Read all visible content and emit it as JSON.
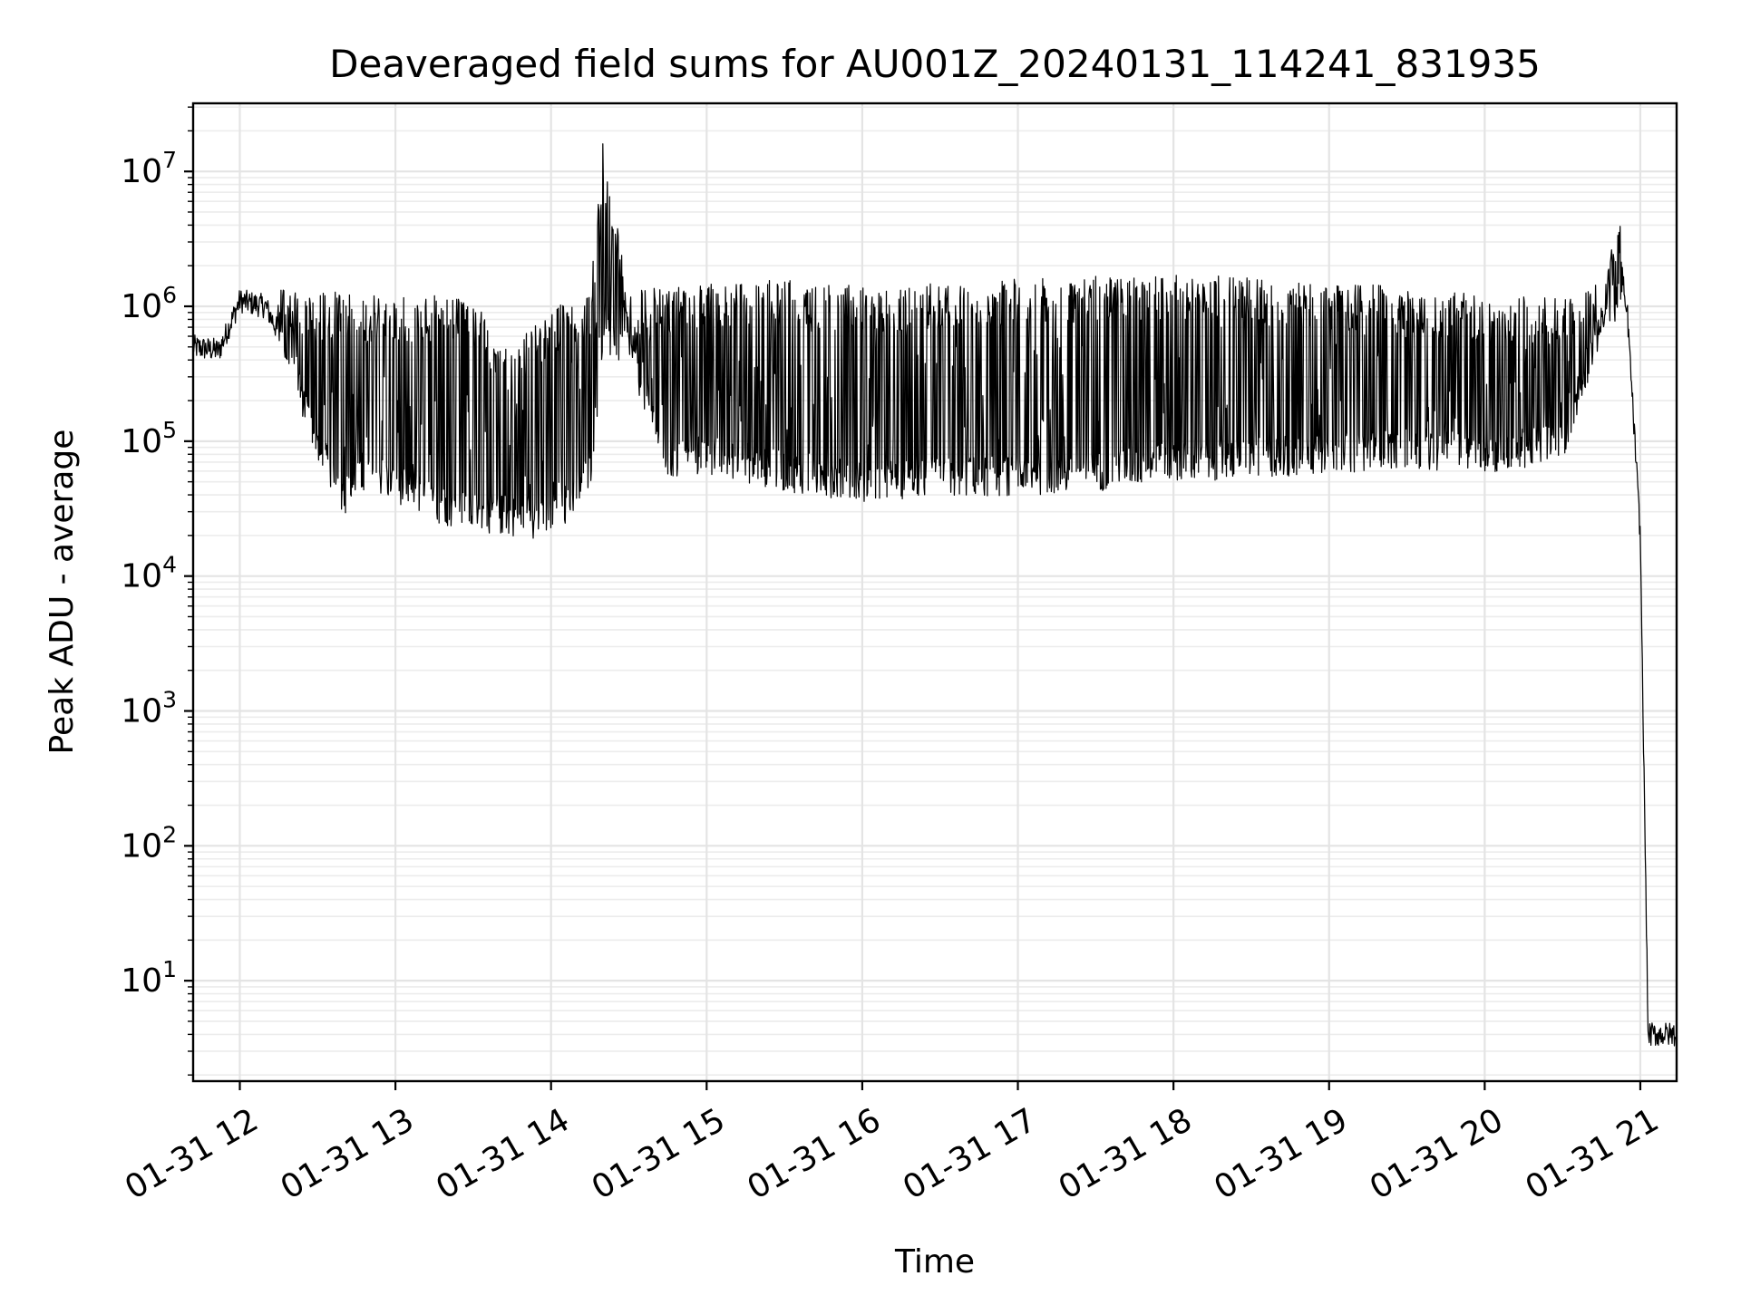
{
  "chart_data": {
    "type": "line",
    "title": "Deaveraged field sums for AU001Z_20240131_114241_831935",
    "xlabel": "Time",
    "ylabel": "Peak ADU - average",
    "yscale": "log",
    "ylim": [
      1.8,
      32000000
    ],
    "xlim": [
      "2024-01-31 11:42",
      "2024-01-31 21:14"
    ],
    "grid": true,
    "x_tick_labels": [
      "01-31 12",
      "01-31 13",
      "01-31 14",
      "01-31 15",
      "01-31 16",
      "01-31 17",
      "01-31 18",
      "01-31 19",
      "01-31 20",
      "01-31 21"
    ],
    "x_ticks": [
      "2024-01-31 12:00",
      "2024-01-31 13:00",
      "2024-01-31 14:00",
      "2024-01-31 15:00",
      "2024-01-31 16:00",
      "2024-01-31 17:00",
      "2024-01-31 18:00",
      "2024-01-31 19:00",
      "2024-01-31 20:00",
      "2024-01-31 21:00"
    ],
    "y_ticks": [
      {
        "base": "10",
        "exp": "1",
        "value": 10
      },
      {
        "base": "10",
        "exp": "2",
        "value": 100
      },
      {
        "base": "10",
        "exp": "3",
        "value": 1000
      },
      {
        "base": "10",
        "exp": "4",
        "value": 10000
      },
      {
        "base": "10",
        "exp": "5",
        "value": 100000
      },
      {
        "base": "10",
        "exp": "6",
        "value": 1000000
      },
      {
        "base": "10",
        "exp": "7",
        "value": 10000000
      }
    ],
    "series": [
      {
        "color": "#000000",
        "x": [
          "2024-01-31 11:42",
          "2024-01-31 11:52",
          "2024-01-31 12:00",
          "2024-01-31 12:10",
          "2024-01-31 12:20",
          "2024-01-31 12:30",
          "2024-01-31 12:40",
          "2024-01-31 12:50",
          "2024-01-31 13:00",
          "2024-01-31 13:15",
          "2024-01-31 13:30",
          "2024-01-31 13:45",
          "2024-01-31 14:00",
          "2024-01-31 14:15",
          "2024-01-31 14:20",
          "2024-01-31 14:30",
          "2024-01-31 14:45",
          "2024-01-31 15:00",
          "2024-01-31 15:30",
          "2024-01-31 16:00",
          "2024-01-31 16:30",
          "2024-01-31 17:00",
          "2024-01-31 17:30",
          "2024-01-31 18:00",
          "2024-01-31 18:30",
          "2024-01-31 19:00",
          "2024-01-31 19:30",
          "2024-01-31 20:00",
          "2024-01-31 20:30",
          "2024-01-31 20:45",
          "2024-01-31 20:52",
          "2024-01-31 20:55",
          "2024-01-31 21:00",
          "2024-01-31 21:03",
          "2024-01-31 21:14"
        ],
        "base": [
          500000,
          470000,
          1100000,
          1000000,
          400000,
          90000,
          40000,
          60000,
          50000,
          35000,
          30000,
          28000,
          25000,
          60000,
          600000,
          500000,
          70000,
          80000,
          60000,
          50000,
          55000,
          55000,
          60000,
          70000,
          75000,
          80000,
          90000,
          80000,
          100000,
          800000,
          1200000,
          900000,
          20000,
          4,
          4
        ],
        "peak": [
          700000,
          560000,
          1200000,
          1700000,
          1300000,
          1300000,
          1300000,
          1200000,
          1200000,
          1200000,
          1100000,
          500000,
          1000000,
          1200000,
          16000000,
          1300000,
          1400000,
          1500000,
          1600000,
          1400000,
          1500000,
          1600000,
          1700000,
          1700000,
          1700000,
          1500000,
          1400000,
          1200000,
          1200000,
          1500000,
          5000000,
          1200000,
          20000,
          4.5,
          4.5
        ]
      }
    ]
  }
}
